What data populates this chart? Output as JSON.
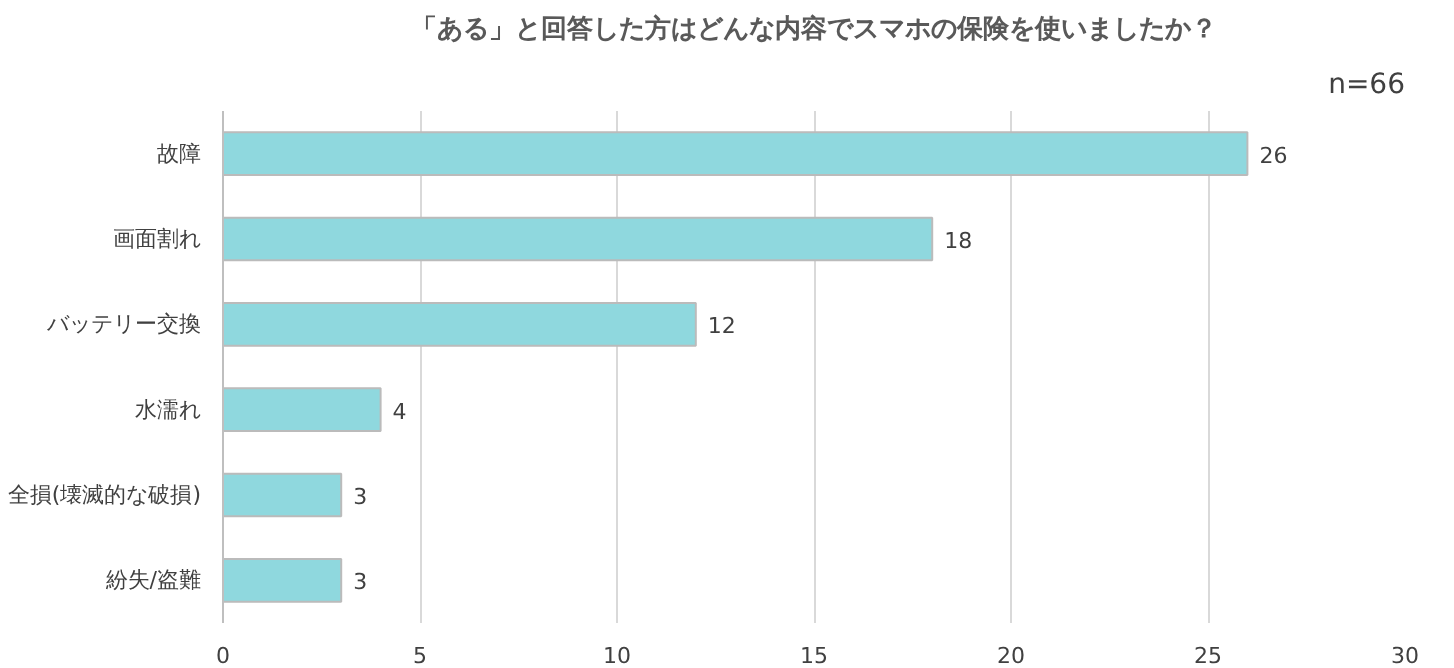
{
  "chart_data": {
    "type": "bar",
    "orientation": "horizontal",
    "title": "「ある」と回答した方はどんな内容でスマホの保険を使いましたか？",
    "annotations": [
      "n=66"
    ],
    "categories": [
      "故障",
      "画面割れ",
      "バッテリー交換",
      "水濡れ",
      "全損(壊滅的な破損)",
      "紛失/盗難"
    ],
    "values": [
      26,
      18,
      12,
      4,
      3,
      3
    ],
    "color": "#8fd8de",
    "data_labels": true,
    "xlim": [
      0,
      30
    ],
    "xticks": [
      0,
      5,
      10,
      15,
      20,
      25,
      30
    ],
    "grid": "x"
  }
}
